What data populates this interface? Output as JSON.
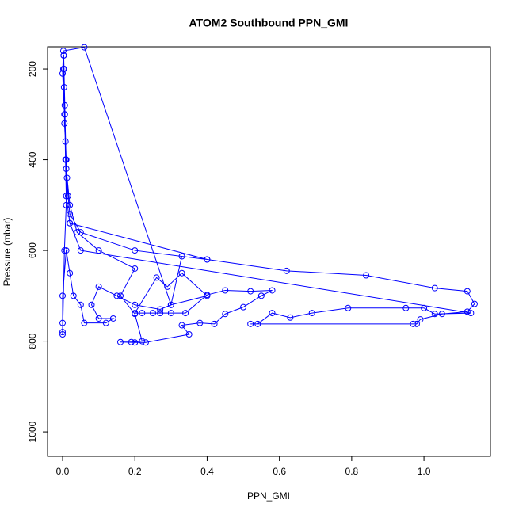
{
  "chart_data": {
    "type": "scatter",
    "title": "ATOM2 Southbound PPN_GMI",
    "x_label": "PPN_GMI",
    "y_label": "Pressure (mbar)",
    "xlim": [
      -0.0417,
      1.184
    ],
    "ylim": [
      1054,
      151
    ],
    "y_reversed": true,
    "xticks": [
      {
        "value": 0,
        "label": "0.0"
      },
      0.2,
      0.4,
      0.6,
      0.8,
      {
        "value": 1,
        "label": "1.0"
      }
    ],
    "yticks": [
      200,
      400,
      600,
      800,
      1000
    ],
    "lines": true,
    "series": [
      {
        "color": "#0000ff",
        "x": [
          0.003,
          0.002,
          0.004,
          0.006,
          0.005,
          0.008,
          0.01,
          0.012,
          0.015,
          0.02,
          0.05,
          0.2,
          0.4,
          0.62,
          0.84,
          1.03,
          1.12,
          1.14,
          1.12,
          1.05,
          0.99,
          0.98,
          0.97,
          0.52,
          0.54,
          0.58,
          0.63,
          0.69,
          0.79,
          0.95,
          1.0,
          1.03,
          1.13,
          0.05,
          0.02,
          0.01,
          0.008,
          0.006,
          0.004,
          0.003,
          0.01,
          0.02,
          0.04,
          0.1,
          0.2,
          0.16,
          0.2,
          0.22,
          0.19,
          0.16,
          0.2,
          0.23,
          0.35,
          0.33,
          0.38,
          0.42,
          0.45,
          0.5,
          0.55,
          0.58,
          0.52,
          0.45,
          0.4,
          0.34,
          0.3,
          0.27,
          0.25,
          0.22,
          0.2,
          0.26,
          0.29,
          0.33,
          0.4,
          0.3,
          0.27,
          0.2,
          0.15,
          0.1,
          0.08,
          0.1,
          0.14,
          0.12,
          0.06,
          0.05,
          0.03,
          0.02,
          0.01,
          0.0,
          0.0,
          0.0,
          0.0,
          0.005,
          0.01,
          0.01,
          0.005,
          0.0,
          0.002,
          0.06,
          0.3,
          0.33,
          0.4,
          0.02
        ],
        "y": [
          170,
          200,
          240,
          280,
          320,
          360,
          400,
          440,
          480,
          520,
          560,
          600,
          620,
          645,
          655,
          683,
          690,
          718,
          735,
          740,
          752,
          762,
          762,
          762,
          762,
          738,
          748,
          738,
          727,
          727,
          727,
          740,
          738,
          600,
          540,
          480,
          400,
          300,
          200,
          170,
          420,
          500,
          560,
          600,
          640,
          700,
          740,
          800,
          802,
          802,
          803,
          803,
          785,
          765,
          760,
          762,
          740,
          725,
          700,
          688,
          690,
          688,
          698,
          738,
          738,
          738,
          738,
          738,
          738,
          660,
          680,
          650,
          700,
          720,
          730,
          720,
          700,
          680,
          720,
          750,
          750,
          760,
          760,
          720,
          700,
          650,
          600,
          700,
          760,
          780,
          785,
          600,
          500,
          400,
          300,
          210,
          160,
          152,
          720,
          613,
          620,
          540
        ]
      }
    ]
  }
}
